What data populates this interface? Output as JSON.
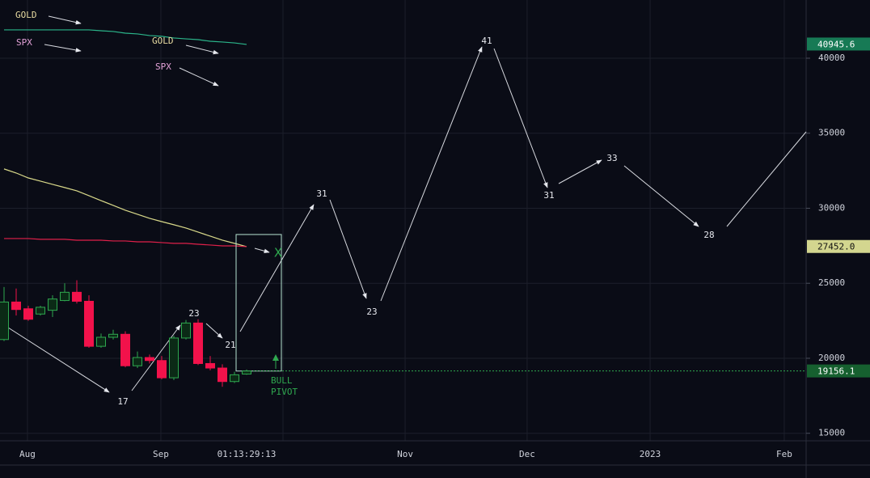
{
  "chart_data": {
    "type": "candlestick",
    "ylim": [
      14500,
      43880
    ],
    "yticks": [
      15000,
      20000,
      25000,
      30000,
      35000,
      40000
    ],
    "xlim": [
      -0.333,
      66.133
    ],
    "xticks": [
      {
        "value": 1.93,
        "label": "Aug"
      },
      {
        "value": 12.93,
        "label": "Sep"
      },
      {
        "value": 23,
        "label": null
      },
      {
        "value": 33.07,
        "label": "Nov"
      },
      {
        "value": 43.13,
        "label": "Dec"
      },
      {
        "value": 53.27,
        "label": "2023"
      },
      {
        "value": 64.33,
        "label": "Feb"
      }
    ],
    "grid": true,
    "countdown": "01:13:29:13",
    "up_color": "#2fa84f",
    "down_color": "#f2124b",
    "candles": [
      {
        "open": 21250,
        "high": 24750,
        "low": 21150,
        "close": 23750
      },
      {
        "open": 23750,
        "high": 24650,
        "low": 22850,
        "close": 23250
      },
      {
        "open": 23300,
        "high": 23500,
        "low": 22500,
        "close": 22600
      },
      {
        "open": 22950,
        "high": 23500,
        "low": 22850,
        "close": 23400
      },
      {
        "open": 23200,
        "high": 24200,
        "low": 22750,
        "close": 23950
      },
      {
        "open": 23850,
        "high": 25000,
        "low": 23800,
        "close": 24400
      },
      {
        "open": 24400,
        "high": 25200,
        "low": 23650,
        "close": 23800
      },
      {
        "open": 23800,
        "high": 24200,
        "low": 20700,
        "close": 20800
      },
      {
        "open": 20800,
        "high": 21650,
        "low": 20700,
        "close": 21400
      },
      {
        "open": 21400,
        "high": 21900,
        "low": 21250,
        "close": 21600
      },
      {
        "open": 21600,
        "high": 21800,
        "low": 19400,
        "close": 19500
      },
      {
        "open": 19500,
        "high": 20450,
        "low": 19350,
        "close": 20050
      },
      {
        "open": 20050,
        "high": 20250,
        "low": 19650,
        "close": 19850
      },
      {
        "open": 19850,
        "high": 20150,
        "low": 18600,
        "close": 18700
      },
      {
        "open": 18700,
        "high": 21500,
        "low": 18550,
        "close": 21350
      },
      {
        "open": 21350,
        "high": 22550,
        "low": 21250,
        "close": 22350
      },
      {
        "open": 22350,
        "high": 22600,
        "low": 19550,
        "close": 19650
      },
      {
        "open": 19650,
        "high": 20150,
        "low": 19200,
        "close": 19350
      },
      {
        "open": 19350,
        "high": 19600,
        "low": 18100,
        "close": 18450
      },
      {
        "open": 18450,
        "high": 19100,
        "low": 18350,
        "close": 18900
      },
      {
        "open": 18950,
        "high": 19250,
        "low": 18900,
        "close": 19150
      }
    ],
    "lines": [
      {
        "color": "#2bb58a",
        "values": [
          41890,
          41890,
          41890,
          41890,
          41890,
          41890,
          41890,
          41890,
          41830,
          41780,
          41670,
          41620,
          41510,
          41460,
          41350,
          41290,
          41240,
          41130,
          41080,
          41020,
          40920
        ]
      },
      {
        "color": "#d9d98a",
        "values": [
          32620,
          32350,
          32020,
          31810,
          31590,
          31380,
          31160,
          30840,
          30510,
          30190,
          29870,
          29600,
          29330,
          29110,
          28900,
          28680,
          28410,
          28140,
          27870,
          27660,
          27440
        ]
      },
      {
        "color": "#e0204a",
        "values": [
          27980,
          27980,
          27980,
          27930,
          27930,
          27930,
          27870,
          27870,
          27870,
          27820,
          27820,
          27760,
          27760,
          27710,
          27660,
          27660,
          27600,
          27550,
          27490,
          27490,
          27440
        ]
      }
    ],
    "price_labels": [
      {
        "value": 40945.6,
        "label": "40945.6",
        "color": "#177a55",
        "text_color": "#ffffff"
      },
      {
        "value": 27452.0,
        "label": "27452.0",
        "color": "#d3d68f",
        "text_color": "#111111"
      },
      {
        "value": 19156.1,
        "label": "19156.1",
        "color": "#16602f",
        "text_color": "#ffffff"
      }
    ],
    "pivot": {
      "top": 28250,
      "bottom": 19150,
      "label": [
        "BULL",
        "PIVOT"
      ],
      "mark": "X",
      "color": "#2fa84f"
    },
    "legend": [
      {
        "text": "GOLD",
        "color": "#e9dca2"
      },
      {
        "text": "SPX",
        "color": "#e3a2d8"
      },
      {
        "text": "GOLD",
        "color": "#e9dca2"
      },
      {
        "text": "SPX",
        "color": "#e3a2d8"
      }
    ],
    "annotations": [
      "17",
      "23",
      "21",
      "31",
      "23",
      "41",
      "31",
      "33",
      "28"
    ]
  }
}
